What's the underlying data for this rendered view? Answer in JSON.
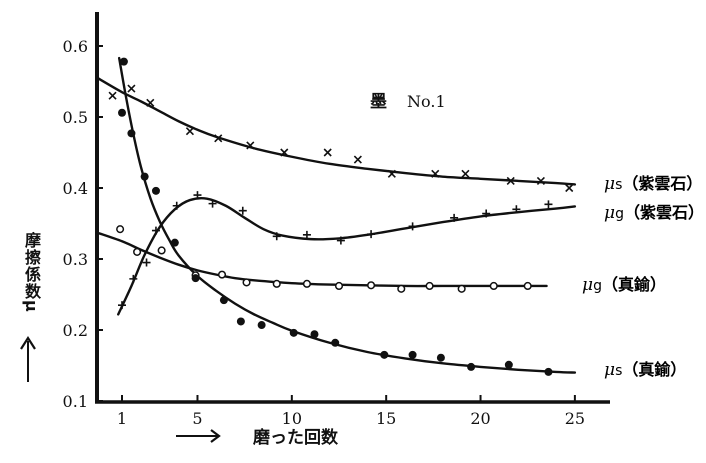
{
  "chart_data": {
    "type": "line",
    "title": "墨 No.1",
    "xlabel": "磨った回数",
    "ylabel": "摩擦係数 μ",
    "xlim": [
      0,
      26
    ],
    "ylim": [
      0.1,
      0.62
    ],
    "x_ticks": [
      1,
      5,
      10,
      15,
      20,
      25
    ],
    "y_ticks": [
      0.1,
      0.2,
      0.3,
      0.4,
      0.5,
      0.6
    ],
    "grid": false,
    "legend_position": "inline labels at right end of each curve",
    "series": [
      {
        "name": "μs（紫雲石）",
        "label_main": "μs",
        "label_sub": "（紫雲石）",
        "marker": "x",
        "points": [
          [
            0.5,
            0.53
          ],
          [
            1.5,
            0.54
          ],
          [
            2.5,
            0.52
          ],
          [
            4.6,
            0.48
          ],
          [
            6.1,
            0.47
          ],
          [
            7.8,
            0.46
          ],
          [
            9.6,
            0.45
          ],
          [
            11.9,
            0.45
          ],
          [
            13.5,
            0.44
          ],
          [
            15.3,
            0.42
          ],
          [
            17.6,
            0.42
          ],
          [
            19.2,
            0.42
          ],
          [
            21.6,
            0.41
          ],
          [
            23.2,
            0.41
          ],
          [
            24.7,
            0.4
          ]
        ],
        "curve": [
          [
            -0.3,
            0.555
          ],
          [
            1,
            0.535
          ],
          [
            2,
            0.522
          ],
          [
            3,
            0.508
          ],
          [
            4,
            0.494
          ],
          [
            5,
            0.482
          ],
          [
            6,
            0.472
          ],
          [
            8,
            0.456
          ],
          [
            10,
            0.444
          ],
          [
            12,
            0.434
          ],
          [
            14,
            0.427
          ],
          [
            16,
            0.421
          ],
          [
            18,
            0.416
          ],
          [
            20,
            0.413
          ],
          [
            22,
            0.41
          ],
          [
            24,
            0.407
          ],
          [
            25,
            0.405
          ]
        ]
      },
      {
        "name": "μg（紫雲石）",
        "label_main": "μg",
        "label_sub": "（紫雲石）",
        "marker": "+",
        "points": [
          [
            1,
            0.235
          ],
          [
            1.6,
            0.272
          ],
          [
            2.3,
            0.295
          ],
          [
            2.8,
            0.34
          ],
          [
            3.9,
            0.375
          ],
          [
            5,
            0.39
          ],
          [
            5.8,
            0.378
          ],
          [
            7.4,
            0.368
          ],
          [
            9.2,
            0.332
          ],
          [
            10.8,
            0.334
          ],
          [
            12.6,
            0.326
          ],
          [
            14.2,
            0.335
          ],
          [
            16.4,
            0.346
          ],
          [
            18.6,
            0.358
          ],
          [
            20.3,
            0.364
          ],
          [
            21.9,
            0.37
          ],
          [
            23.6,
            0.377
          ]
        ],
        "curve": [
          [
            0.8,
            0.222
          ],
          [
            1.5,
            0.262
          ],
          [
            2.2,
            0.306
          ],
          [
            3,
            0.345
          ],
          [
            3.8,
            0.37
          ],
          [
            4.6,
            0.383
          ],
          [
            5.5,
            0.385
          ],
          [
            6.5,
            0.375
          ],
          [
            7.5,
            0.358
          ],
          [
            8.5,
            0.342
          ],
          [
            9.5,
            0.333
          ],
          [
            11,
            0.328
          ],
          [
            12.5,
            0.329
          ],
          [
            14,
            0.334
          ],
          [
            16,
            0.343
          ],
          [
            18,
            0.352
          ],
          [
            20,
            0.36
          ],
          [
            22,
            0.366
          ],
          [
            24,
            0.371
          ],
          [
            25,
            0.374
          ]
        ]
      },
      {
        "name": "μg（真鍮）",
        "label_main": "μg",
        "label_sub": "（真鍮）",
        "marker": "o",
        "points": [
          [
            0.9,
            0.342
          ],
          [
            1.8,
            0.31
          ],
          [
            3.1,
            0.312
          ],
          [
            4.9,
            0.277
          ],
          [
            6.3,
            0.278
          ],
          [
            7.6,
            0.267
          ],
          [
            9.2,
            0.265
          ],
          [
            10.8,
            0.265
          ],
          [
            12.5,
            0.262
          ],
          [
            14.2,
            0.263
          ],
          [
            15.8,
            0.258
          ],
          [
            17.3,
            0.262
          ],
          [
            19,
            0.258
          ],
          [
            20.7,
            0.262
          ],
          [
            22.5,
            0.262
          ]
        ],
        "curve": [
          [
            -0.3,
            0.337
          ],
          [
            1,
            0.325
          ],
          [
            2,
            0.313
          ],
          [
            3,
            0.302
          ],
          [
            4,
            0.292
          ],
          [
            5,
            0.284
          ],
          [
            6,
            0.278
          ],
          [
            7,
            0.273
          ],
          [
            8,
            0.27
          ],
          [
            10,
            0.266
          ],
          [
            12,
            0.264
          ],
          [
            14,
            0.263
          ],
          [
            16,
            0.262
          ],
          [
            18,
            0.262
          ],
          [
            20,
            0.262
          ],
          [
            22,
            0.262
          ],
          [
            23.5,
            0.262
          ]
        ]
      },
      {
        "name": "μs（真鍮）",
        "label_main": "μs",
        "label_sub": "（真鍮）",
        "marker": "filled-circle",
        "points": [
          [
            1.1,
            0.578
          ],
          [
            1,
            0.506
          ],
          [
            1.5,
            0.477
          ],
          [
            2.2,
            0.416
          ],
          [
            2.8,
            0.396
          ],
          [
            3.8,
            0.323
          ],
          [
            4.9,
            0.273
          ],
          [
            6.4,
            0.242
          ],
          [
            7.3,
            0.212
          ],
          [
            8.4,
            0.207
          ],
          [
            10.1,
            0.196
          ],
          [
            11.2,
            0.194
          ],
          [
            12.3,
            0.182
          ],
          [
            14.9,
            0.165
          ],
          [
            16.4,
            0.165
          ],
          [
            17.9,
            0.161
          ],
          [
            19.5,
            0.148
          ],
          [
            21.5,
            0.151
          ],
          [
            23.6,
            0.141
          ]
        ],
        "curve": [
          [
            0.85,
            0.583
          ],
          [
            1.2,
            0.53
          ],
          [
            1.6,
            0.476
          ],
          [
            2,
            0.43
          ],
          [
            2.5,
            0.386
          ],
          [
            3,
            0.353
          ],
          [
            3.5,
            0.327
          ],
          [
            4,
            0.305
          ],
          [
            5,
            0.276
          ],
          [
            6,
            0.255
          ],
          [
            7,
            0.237
          ],
          [
            8,
            0.222
          ],
          [
            9,
            0.21
          ],
          [
            10,
            0.199
          ],
          [
            12,
            0.182
          ],
          [
            14,
            0.169
          ],
          [
            16,
            0.16
          ],
          [
            18,
            0.153
          ],
          [
            20,
            0.148
          ],
          [
            22,
            0.144
          ],
          [
            24,
            0.141
          ],
          [
            25,
            0.14
          ]
        ]
      }
    ]
  },
  "title": {
    "ink": "墨",
    "number": "No.1"
  },
  "axes": {
    "y_label": "摩擦係数μ",
    "x_label": "磨った回数"
  }
}
